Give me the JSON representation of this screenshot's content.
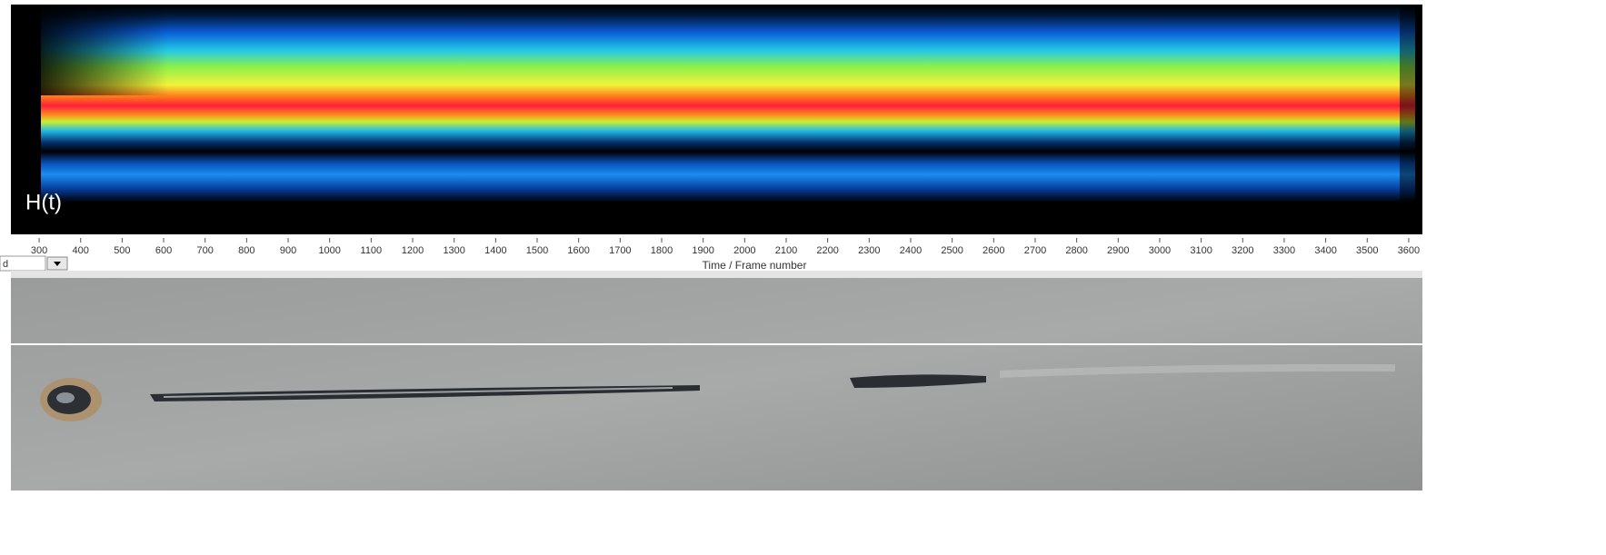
{
  "chart_data": {
    "type": "heatmap",
    "annotation": "H(t)",
    "x_label": "Time / Frame number",
    "xlim": [
      232,
      3633
    ],
    "xticks": [
      300,
      400,
      500,
      600,
      700,
      800,
      900,
      1000,
      1100,
      1200,
      1300,
      1400,
      1500,
      1600,
      1700,
      1800,
      1900,
      2000,
      2100,
      2200,
      2300,
      2400,
      2500,
      2600,
      2700,
      2800,
      2900,
      3000,
      3100,
      3200,
      3300,
      3400,
      3500,
      3600
    ]
  },
  "dropdown_fragment": "d"
}
